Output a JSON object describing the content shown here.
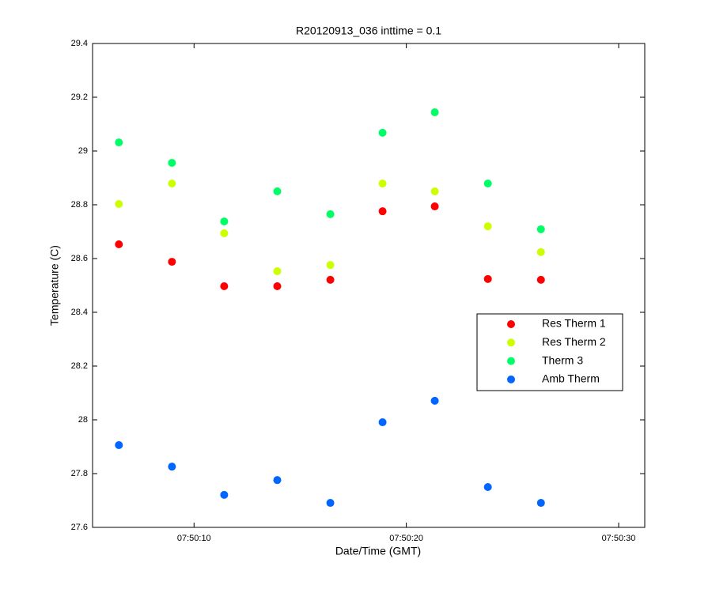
{
  "chart_data": {
    "type": "scatter",
    "title": "R20120913_036 inttime = 0.1",
    "x_label": "Date/Time (GMT)",
    "y_label": "Temperature (C)",
    "x": [
      6.46,
      8.96,
      11.42,
      13.92,
      16.42,
      18.88,
      21.34,
      23.84,
      26.34
    ],
    "series": [
      {
        "name": "Res Therm 1",
        "color": "#ff0000",
        "values": [
          28.653,
          28.588,
          28.497,
          28.497,
          28.521,
          28.776,
          28.794,
          28.524,
          28.521
        ]
      },
      {
        "name": "Res Therm 2",
        "color": "#ccff00",
        "values": [
          28.803,
          28.879,
          28.694,
          28.553,
          28.576,
          28.879,
          28.85,
          28.72,
          28.624
        ]
      },
      {
        "name": "Therm 3",
        "color": "#00ff66",
        "values": [
          29.032,
          28.956,
          28.738,
          28.85,
          28.765,
          29.068,
          29.144,
          28.879,
          28.709
        ]
      },
      {
        "name": "Amb Therm",
        "color": "#0066ff",
        "values": [
          27.906,
          27.826,
          27.721,
          27.776,
          27.691,
          27.991,
          28.071,
          27.75,
          27.691
        ]
      }
    ],
    "xlim": [
      5.22,
      31.23
    ],
    "xticks": [
      {
        "value": 10,
        "label": "07:50:10"
      },
      {
        "value": 20,
        "label": "07:50:20"
      },
      {
        "value": 30,
        "label": "07:50:30"
      }
    ],
    "ylim": [
      27.6,
      29.4
    ],
    "yticks": [
      27.6,
      27.8,
      28,
      28.2,
      28.4,
      28.6,
      28.8,
      29,
      29.2,
      29.4
    ],
    "grid": false,
    "legend": "right"
  }
}
